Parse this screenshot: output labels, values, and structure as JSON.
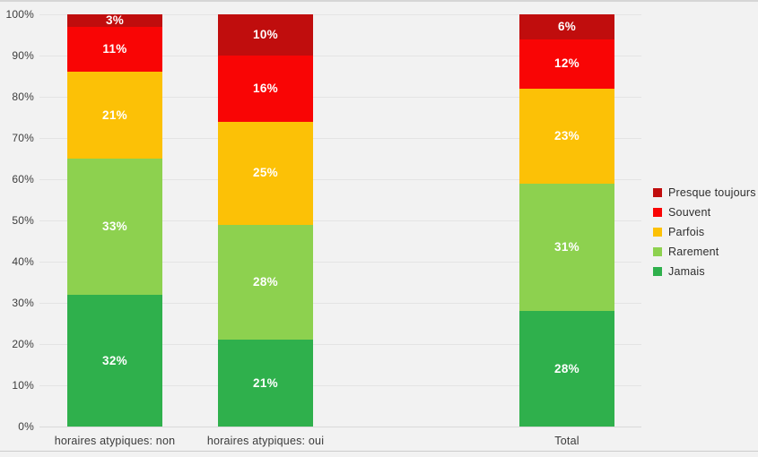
{
  "chart_data": {
    "type": "bar",
    "variant": "stacked-100-percent-column",
    "title": "",
    "categories": [
      "horaires atypiques: non",
      "horaires atypiques: oui",
      "Total"
    ],
    "series": [
      {
        "name": "Jamais",
        "color": "#2FB04C",
        "values": [
          32,
          21,
          28
        ]
      },
      {
        "name": "Rarement",
        "color": "#8DD14F",
        "values": [
          33,
          28,
          31
        ]
      },
      {
        "name": "Parfois",
        "color": "#FCC106",
        "values": [
          21,
          25,
          23
        ]
      },
      {
        "name": "Souvent",
        "color": "#F90505",
        "values": [
          11,
          16,
          12
        ]
      },
      {
        "name": "Presque toujours",
        "color": "#C00D0D",
        "values": [
          3,
          10,
          6
        ]
      }
    ],
    "data_labels": {
      "horaires atypiques: non": [
        "32%",
        "33%",
        "21%",
        "11%",
        "3%"
      ],
      "horaires atypiques: oui": [
        "21%",
        "28%",
        "25%",
        "16%",
        "10%"
      ],
      "Total": [
        "28%",
        "31%",
        "23%",
        "12%",
        "6%"
      ]
    },
    "xlabel": "",
    "ylabel": "",
    "y_axis": {
      "min": 0,
      "max": 100,
      "ticks": [
        "0%",
        "10%",
        "20%",
        "30%",
        "40%",
        "50%",
        "60%",
        "70%",
        "80%",
        "90%",
        "100%"
      ],
      "grid": true
    },
    "legend": {
      "position": "right",
      "items": [
        "Presque toujours",
        "Souvent",
        "Parfois",
        "Rarement",
        "Jamais"
      ]
    },
    "colors": {
      "background": "#F2F2F2",
      "gridline": "#E4E4E4",
      "bar_label_text": "#FFFFFF",
      "axis_text": "#3D3D3D"
    }
  }
}
